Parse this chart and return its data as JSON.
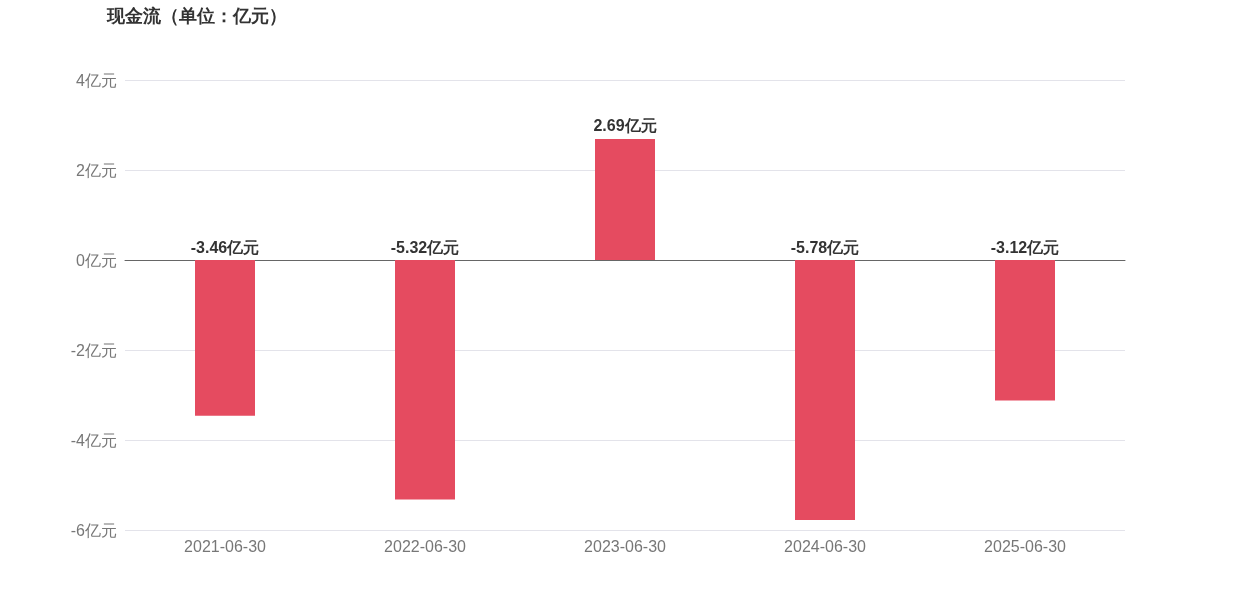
{
  "chart_data": {
    "type": "bar",
    "title": "现金流（单位：亿元）",
    "categories": [
      "2021-06-30",
      "2022-06-30",
      "2023-06-30",
      "2024-06-30",
      "2025-06-30"
    ],
    "values": [
      -3.46,
      -5.32,
      2.69,
      -5.78,
      -3.12
    ],
    "color": "#e54b60",
    "value_labels": [
      "-3.46亿元",
      "-5.32亿元",
      "2.69亿元",
      "-5.78亿元",
      "-3.12亿元"
    ],
    "ylim": [
      -6,
      4
    ],
    "yticks": [
      {
        "value": -6,
        "label": "-6亿元"
      },
      {
        "value": -4,
        "label": "-4亿元"
      },
      {
        "value": -2,
        "label": "-2亿元"
      },
      {
        "value": 0,
        "label": "0亿元"
      },
      {
        "value": 2,
        "label": "2亿元"
      },
      {
        "value": 4,
        "label": "4亿元"
      }
    ],
    "grid": "y"
  }
}
